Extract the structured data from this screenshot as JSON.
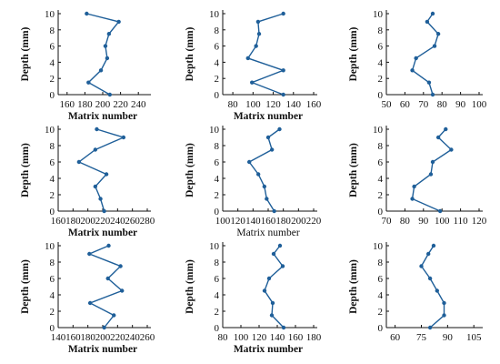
{
  "chart_data": [
    {
      "type": "line",
      "xlabel": "Matrix number",
      "ylabel": "Depth (mm)",
      "xlim": [
        150,
        250
      ],
      "ylim": [
        0,
        10
      ],
      "xticks": [
        "160",
        "180",
        "200",
        "220",
        "240"
      ],
      "yticks": [
        "0",
        "2",
        "4",
        "6",
        "8",
        "10"
      ],
      "series": [
        {
          "x": [
            208,
            184,
            198,
            205,
            203,
            207,
            218,
            182
          ],
          "y": [
            0,
            1.5,
            3,
            4.5,
            6,
            7.5,
            9,
            10
          ]
        }
      ]
    },
    {
      "type": "line",
      "xlabel": "Matrix number",
      "ylabel": "Depth (mm)",
      "xlim": [
        70,
        160
      ],
      "ylim": [
        0,
        10
      ],
      "xticks": [
        "80",
        "100",
        "120",
        "140",
        "160"
      ],
      "yticks": [
        "0",
        "2",
        "4",
        "6",
        "8",
        "10"
      ],
      "series": [
        {
          "x": [
            130,
            99,
            130,
            95,
            103,
            106,
            105,
            130
          ],
          "y": [
            0,
            1.5,
            3,
            4.5,
            6,
            7.5,
            9,
            10
          ]
        }
      ]
    },
    {
      "type": "line",
      "xlabel": "",
      "ylabel": "Depth (mm)",
      "xlim": [
        50,
        100
      ],
      "ylim": [
        0,
        10
      ],
      "xticks": [
        "50",
        "60",
        "70",
        "80",
        "90",
        "100"
      ],
      "yticks": [
        "0",
        "2",
        "4",
        "6",
        "8",
        "10"
      ],
      "series": [
        {
          "x": [
            75,
            73,
            64,
            66,
            76,
            78,
            72,
            75
          ],
          "y": [
            0,
            1.5,
            3,
            4.5,
            6,
            7.5,
            9,
            10
          ]
        }
      ]
    },
    {
      "type": "line",
      "xlabel": "Matrix number",
      "ylabel": "Depth (mm)",
      "xlim": [
        160,
        280
      ],
      "ylim": [
        0,
        10
      ],
      "xticks": [
        "160",
        "180",
        "200",
        "220",
        "240",
        "260",
        "280"
      ],
      "yticks": [
        "0",
        "2",
        "4",
        "6",
        "8",
        "10"
      ],
      "series": [
        {
          "x": [
            222,
            217,
            210,
            225,
            188,
            210,
            248,
            212
          ],
          "y": [
            0,
            1.5,
            3,
            4.5,
            6,
            7.5,
            9,
            10
          ]
        }
      ]
    },
    {
      "type": "line",
      "xlabel": "Matrix number",
      "ylabel": "Depth (mm)",
      "xlim": [
        100,
        220
      ],
      "ylim": [
        0,
        10
      ],
      "xticks": [
        "100",
        "120",
        "140",
        "160",
        "180",
        "200",
        "220"
      ],
      "yticks": [
        "0",
        "2",
        "4",
        "6",
        "8",
        "10"
      ],
      "series": [
        {
          "x": [
            168,
            158,
            155,
            147,
            135,
            165,
            160,
            175
          ],
          "y": [
            0,
            1.5,
            3,
            4.5,
            6,
            7.5,
            9,
            10
          ]
        }
      ]
    },
    {
      "type": "line",
      "xlabel": "",
      "ylabel": "Depth (mm)",
      "xlim": [
        70,
        120
      ],
      "ylim": [
        0,
        10
      ],
      "xticks": [
        "70",
        "80",
        "90",
        "100",
        "110",
        "120"
      ],
      "yticks": [
        "0",
        "2",
        "4",
        "6",
        "8",
        "10"
      ],
      "series": [
        {
          "x": [
            99,
            84,
            85,
            94,
            95,
            105,
            98,
            102
          ],
          "y": [
            0,
            1.5,
            3,
            4.5,
            6,
            7.5,
            9,
            10
          ]
        }
      ]
    },
    {
      "type": "line",
      "xlabel": "Matrix number",
      "ylabel": "Depth (mm)",
      "xlim": [
        140,
        260
      ],
      "ylim": [
        0,
        10
      ],
      "xticks": [
        "140",
        "160",
        "180",
        "200",
        "220",
        "240",
        "260"
      ],
      "yticks": [
        "0",
        "2",
        "4",
        "6",
        "8",
        "10"
      ],
      "series": [
        {
          "x": [
            202,
            215,
            183,
            226,
            207,
            224,
            182,
            208
          ],
          "y": [
            0,
            1.5,
            3,
            4.5,
            6,
            7.5,
            9,
            10
          ]
        }
      ]
    },
    {
      "type": "line",
      "xlabel": "Matrix number",
      "ylabel": "Depth (mm)",
      "xlim": [
        80,
        180
      ],
      "ylim": [
        0,
        10
      ],
      "xticks": [
        "80",
        "100",
        "120",
        "140",
        "160",
        "180"
      ],
      "yticks": [
        "0",
        "2",
        "4",
        "6",
        "8",
        "10"
      ],
      "series": [
        {
          "x": [
            147,
            134,
            135,
            126,
            131,
            146,
            136,
            143
          ],
          "y": [
            0,
            1.5,
            3,
            4.5,
            6,
            7.5,
            9,
            10
          ]
        }
      ]
    },
    {
      "type": "line",
      "xlabel": "",
      "ylabel": "Depth (mm)",
      "xlim": [
        55,
        108
      ],
      "ylim": [
        0,
        10
      ],
      "xticks": [
        "60",
        "75",
        "90",
        "105"
      ],
      "yticks": [
        "0",
        "2",
        "4",
        "6",
        "8",
        "10"
      ],
      "series": [
        {
          "x": [
            80,
            88,
            88,
            84,
            80,
            75,
            79,
            82
          ],
          "y": [
            0,
            1.5,
            3,
            4.5,
            6,
            7.5,
            9,
            10
          ]
        }
      ]
    }
  ],
  "panel_xticks_overlap_note": "",
  "colors": {
    "line": "#1f5f99",
    "axis": "#111111"
  }
}
